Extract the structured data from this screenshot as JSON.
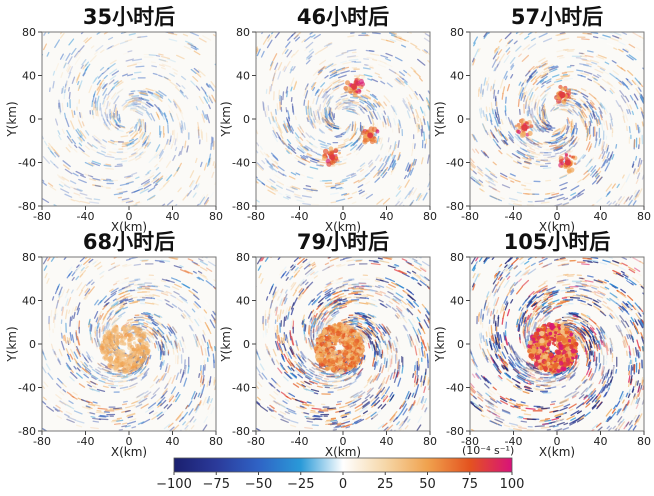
{
  "chart_data": {
    "type": "heatmap",
    "panels": [
      {
        "title": "35小时后",
        "xlabel": "X(km)",
        "ylabel": "Y(km)",
        "intensity": 0.25,
        "core": 0.0,
        "vortices": []
      },
      {
        "title": "46小时后",
        "xlabel": "X(km)",
        "ylabel": "Y(km)",
        "intensity": 0.35,
        "core": 0.0,
        "vortices": [
          [
            10,
            30
          ],
          [
            25,
            -15
          ],
          [
            -10,
            -35
          ]
        ]
      },
      {
        "title": "57小时后",
        "xlabel": "X(km)",
        "ylabel": "Y(km)",
        "intensity": 0.45,
        "core": 0.0,
        "vortices": [
          [
            -30,
            -8
          ],
          [
            5,
            22
          ],
          [
            10,
            -40
          ]
        ]
      },
      {
        "title": "68小时后",
        "xlabel": "X(km)",
        "ylabel": "Y(km)",
        "intensity": 0.5,
        "core": 0.35,
        "vortices": []
      },
      {
        "title": "79小时后",
        "xlabel": "X(km)",
        "ylabel": "Y(km)",
        "intensity": 0.8,
        "core": 0.7,
        "vortices": []
      },
      {
        "title": "105小时后",
        "xlabel": "X(km)",
        "ylabel": "Y(km)",
        "intensity": 0.95,
        "core": 1.0,
        "vortices": []
      }
    ],
    "x_range": [
      -80,
      80
    ],
    "y_range": [
      -80,
      80
    ],
    "x_ticks": [
      -80,
      -40,
      0,
      40,
      80
    ],
    "y_ticks": [
      -80,
      -40,
      0,
      40,
      80
    ],
    "colorbar": {
      "min": -100,
      "max": 100,
      "ticks": [
        -100,
        -75,
        -50,
        -25,
        0,
        25,
        50,
        75,
        100
      ],
      "unit": "(10⁻⁴ s⁻¹)",
      "colors": [
        "#1a1f6e",
        "#2b3a9a",
        "#2f63c5",
        "#2a9ad8",
        "#ffffff",
        "#f6d7a8",
        "#f0a24e",
        "#e4531f",
        "#d8127a"
      ]
    }
  }
}
